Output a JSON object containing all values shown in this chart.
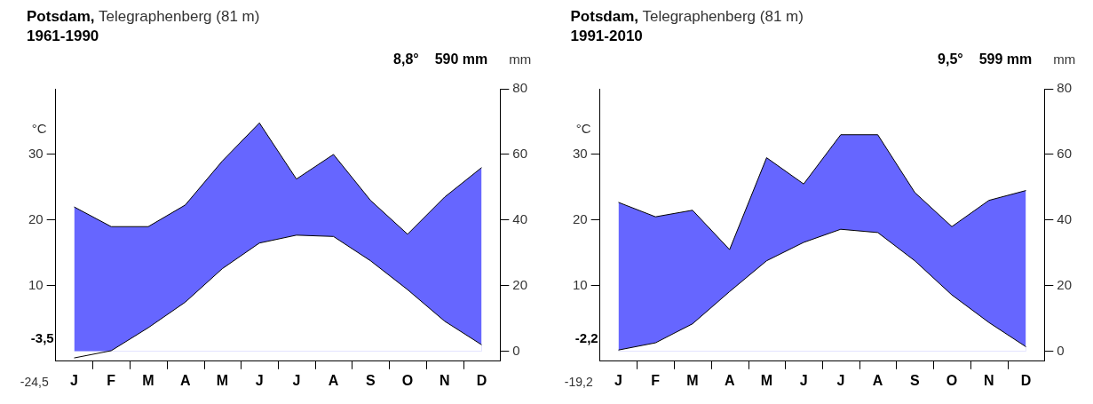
{
  "chart_data": [
    {
      "type": "area",
      "title": "Potsdam, Telegraphenberg (81 m)",
      "subtitle": "1961-1990",
      "ylabel": "°C",
      "y2label": "mm",
      "categories": [
        "J",
        "F",
        "M",
        "A",
        "M",
        "J",
        "J",
        "A",
        "S",
        "O",
        "N",
        "D"
      ],
      "series": [
        {
          "color": "#ffffff",
          "values": [
            -1.0,
            0.1,
            3.6,
            7.5,
            12.6,
            16.5,
            17.7,
            17.5,
            13.8,
            9.4,
            4.6,
            1.0
          ]
        },
        {
          "color": "#0000ff",
          "axis": "y2",
          "values": [
            44,
            38,
            38,
            44.6,
            58,
            69.6,
            52.5,
            60,
            46,
            35.7,
            47,
            56
          ]
        }
      ],
      "ylim": [
        -1.5,
        40
      ],
      "yticks": [
        10,
        20,
        30
      ],
      "y2lim": [
        -3,
        80
      ],
      "y2ticks": [
        0,
        20,
        40,
        60,
        80
      ],
      "annotations": [
        "8,8°",
        "590 mm",
        "-3,5",
        "-24,5"
      ],
      "grid": false,
      "legend": false,
      "marker": "none"
    },
    {
      "type": "area",
      "title": "Potsdam, Telegraphenberg (81 m)",
      "subtitle": "1991-2010",
      "ylabel": "°C",
      "y2label": "mm",
      "categories": [
        "J",
        "F",
        "M",
        "A",
        "M",
        "J",
        "J",
        "A",
        "S",
        "O",
        "N",
        "D"
      ],
      "series": [
        {
          "color": "#ffffff",
          "values": [
            0.2,
            1.3,
            4.2,
            9.1,
            13.8,
            16.6,
            18.6,
            18.1,
            13.8,
            8.6,
            4.4,
            0.7
          ]
        },
        {
          "color": "#0000ff",
          "axis": "y2",
          "values": [
            45.4,
            41,
            43,
            31,
            59,
            51,
            66,
            66,
            48.4,
            38,
            46,
            49
          ]
        }
      ],
      "ylim": [
        -1.5,
        40
      ],
      "yticks": [
        10,
        20,
        30
      ],
      "y2lim": [
        -3,
        80
      ],
      "y2ticks": [
        0,
        20,
        40,
        60,
        80
      ],
      "annotations": [
        "9,5°",
        "599 mm",
        "-2,2",
        "-19,2"
      ],
      "grid": false,
      "legend": false,
      "marker": "none"
    }
  ]
}
